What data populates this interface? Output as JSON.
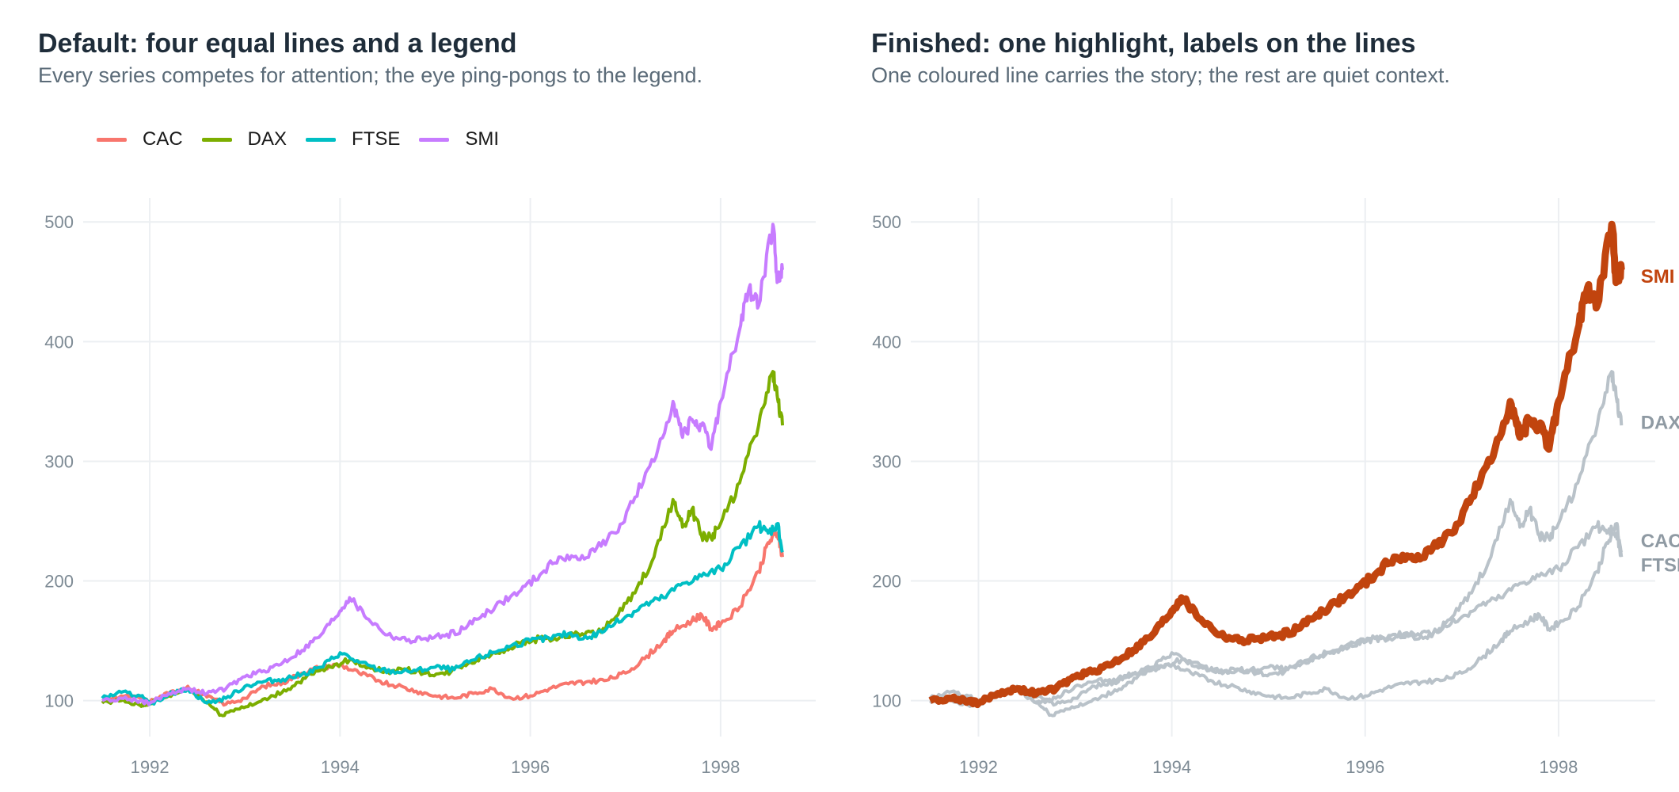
{
  "chart_data": [
    {
      "type": "line",
      "title": "Default: four equal lines and a legend",
      "subtitle": "Every series competes for attention; the eye ping-pongs to the legend.",
      "xlabel": "",
      "ylabel": "",
      "xlim": [
        1991.3,
        1999.0
      ],
      "ylim": [
        70,
        520
      ],
      "xticks": [
        1992,
        1994,
        1996,
        1998
      ],
      "yticks": [
        100,
        200,
        300,
        400,
        500
      ],
      "grid": true,
      "legend": "top-left",
      "series": [
        {
          "name": "CAC",
          "color": "#F8766D",
          "x": [
            1991.5,
            1991.7,
            1991.9,
            1992.0,
            1992.2,
            1992.4,
            1992.6,
            1992.8,
            1993.0,
            1993.2,
            1993.4,
            1993.6,
            1993.8,
            1994.0,
            1994.2,
            1994.4,
            1994.6,
            1994.8,
            1995.0,
            1995.2,
            1995.4,
            1995.6,
            1995.8,
            1996.0,
            1996.2,
            1996.4,
            1996.6,
            1996.8,
            1997.0,
            1997.2,
            1997.4,
            1997.5,
            1997.7,
            1997.8,
            1997.9,
            1998.0,
            1998.2,
            1998.4,
            1998.5,
            1998.6,
            1998.65
          ],
          "values": [
            100,
            104,
            102,
            99,
            106,
            112,
            103,
            97,
            102,
            112,
            115,
            123,
            128,
            130,
            123,
            117,
            112,
            108,
            104,
            102,
            106,
            110,
            102,
            104,
            110,
            114,
            116,
            117,
            123,
            135,
            150,
            158,
            167,
            172,
            160,
            164,
            178,
            208,
            232,
            240,
            220
          ]
        },
        {
          "name": "DAX",
          "color": "#7CAE00",
          "x": [
            1991.5,
            1991.7,
            1991.9,
            1992.0,
            1992.2,
            1992.4,
            1992.6,
            1992.75,
            1992.9,
            1993.1,
            1993.3,
            1993.5,
            1993.7,
            1993.9,
            1994.1,
            1994.3,
            1994.5,
            1994.7,
            1994.9,
            1995.1,
            1995.3,
            1995.5,
            1995.7,
            1995.9,
            1996.1,
            1996.3,
            1996.5,
            1996.7,
            1996.9,
            1997.1,
            1997.3,
            1997.5,
            1997.6,
            1997.7,
            1997.8,
            1997.9,
            1998.0,
            1998.2,
            1998.4,
            1998.55,
            1998.6,
            1998.65
          ],
          "values": [
            98,
            100,
            96,
            98,
            104,
            110,
            99,
            88,
            93,
            97,
            104,
            112,
            122,
            128,
            134,
            128,
            124,
            126,
            123,
            122,
            130,
            136,
            142,
            148,
            152,
            152,
            156,
            156,
            170,
            190,
            220,
            268,
            245,
            260,
            238,
            236,
            248,
            282,
            330,
            375,
            352,
            330
          ]
        },
        {
          "name": "FTSE",
          "color": "#00BFC4",
          "x": [
            1991.5,
            1991.7,
            1991.9,
            1992.0,
            1992.2,
            1992.4,
            1992.6,
            1992.8,
            1993.0,
            1993.2,
            1993.4,
            1993.6,
            1993.8,
            1994.0,
            1994.2,
            1994.4,
            1994.6,
            1994.8,
            1995.0,
            1995.2,
            1995.4,
            1995.6,
            1995.8,
            1996.0,
            1996.2,
            1996.4,
            1996.6,
            1996.8,
            1997.0,
            1997.2,
            1997.4,
            1997.6,
            1997.8,
            1998.0,
            1998.2,
            1998.4,
            1998.5,
            1998.6,
            1998.65
          ],
          "values": [
            102,
            107,
            104,
            97,
            105,
            110,
            98,
            102,
            112,
            116,
            118,
            122,
            128,
            140,
            132,
            126,
            124,
            125,
            128,
            126,
            134,
            140,
            146,
            150,
            152,
            156,
            152,
            160,
            170,
            180,
            186,
            198,
            204,
            210,
            228,
            246,
            240,
            248,
            224
          ]
        },
        {
          "name": "SMI",
          "color": "#C77CFF",
          "x": [
            1991.5,
            1991.7,
            1991.9,
            1992.0,
            1992.2,
            1992.4,
            1992.6,
            1992.8,
            1993.0,
            1993.2,
            1993.4,
            1993.6,
            1993.8,
            1994.0,
            1994.1,
            1994.3,
            1994.5,
            1994.7,
            1994.9,
            1995.1,
            1995.3,
            1995.5,
            1995.7,
            1995.9,
            1996.1,
            1996.3,
            1996.5,
            1996.7,
            1996.9,
            1997.1,
            1997.3,
            1997.5,
            1997.6,
            1997.7,
            1997.8,
            1997.9,
            1998.0,
            1998.2,
            1998.3,
            1998.4,
            1998.55,
            1998.6,
            1998.65
          ],
          "values": [
            100,
            102,
            100,
            98,
            106,
            110,
            106,
            110,
            120,
            125,
            132,
            142,
            155,
            175,
            186,
            168,
            155,
            150,
            152,
            154,
            160,
            172,
            182,
            192,
            205,
            220,
            218,
            228,
            240,
            270,
            300,
            350,
            320,
            335,
            330,
            310,
            350,
            410,
            445,
            430,
            498,
            450,
            460
          ]
        }
      ]
    },
    {
      "type": "line",
      "title": "Finished: one highlight, labels on the lines",
      "subtitle": "One coloured line carries the story; the rest are quiet context.",
      "xlabel": "",
      "ylabel": "",
      "xlim": [
        1991.3,
        1999.0
      ],
      "ylim": [
        70,
        520
      ],
      "xticks": [
        1992,
        1994,
        1996,
        1998
      ],
      "yticks": [
        100,
        200,
        300,
        400,
        500
      ],
      "grid": true,
      "highlight": "SMI",
      "highlight_color": "#C1440E",
      "context_color": "#B9C2C9",
      "end_labels": [
        {
          "text": "SMI",
          "value": 455,
          "highlight": true
        },
        {
          "text": "DAX",
          "value": 333,
          "highlight": false
        },
        {
          "text": "CAC",
          "value": 234,
          "highlight": false
        },
        {
          "text": "FTSE",
          "value": 214,
          "highlight": false
        }
      ]
    }
  ]
}
